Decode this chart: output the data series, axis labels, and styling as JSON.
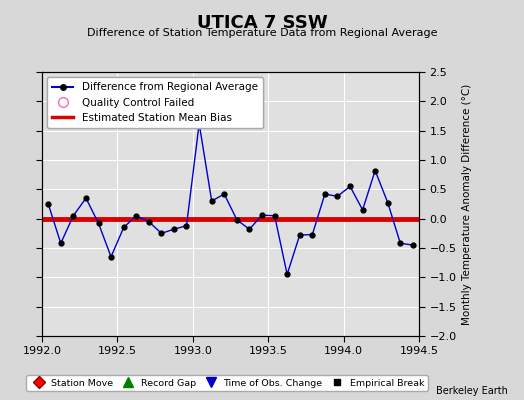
{
  "title": "UTICA 7 SSW",
  "subtitle": "Difference of Station Temperature Data from Regional Average",
  "ylabel": "Monthly Temperature Anomaly Difference (°C)",
  "xlabel": "",
  "watermark": "Berkeley Earth",
  "xlim": [
    1992,
    1994.5
  ],
  "ylim": [
    -2,
    2.5
  ],
  "yticks": [
    -2,
    -1.5,
    -1,
    -0.5,
    0,
    0.5,
    1,
    1.5,
    2,
    2.5
  ],
  "xticks": [
    1992,
    1992.5,
    1993,
    1993.5,
    1994,
    1994.5
  ],
  "figure_bg": "#d8d8d8",
  "plot_bg": "#e0e0e0",
  "grid_color": "#ffffff",
  "bias_line_color": "#dd0000",
  "line_color": "#0000cc",
  "dot_color": "#000000",
  "x_data": [
    1992.042,
    1992.125,
    1992.208,
    1992.292,
    1992.375,
    1992.458,
    1992.542,
    1992.625,
    1992.708,
    1992.792,
    1992.875,
    1992.958,
    1993.042,
    1993.125,
    1993.208,
    1993.292,
    1993.375,
    1993.458,
    1993.542,
    1993.625,
    1993.708,
    1993.792,
    1993.875,
    1993.958,
    1994.042,
    1994.125,
    1994.208,
    1994.292,
    1994.375,
    1994.458
  ],
  "y_data": [
    0.25,
    -0.42,
    0.05,
    0.35,
    -0.08,
    -0.65,
    -0.15,
    0.05,
    -0.05,
    -0.25,
    -0.18,
    -0.12,
    1.62,
    0.3,
    0.42,
    -0.02,
    -0.18,
    0.06,
    0.05,
    -0.95,
    -0.28,
    -0.27,
    0.42,
    0.38,
    0.55,
    0.15,
    0.82,
    0.27,
    -0.42,
    -0.45
  ]
}
